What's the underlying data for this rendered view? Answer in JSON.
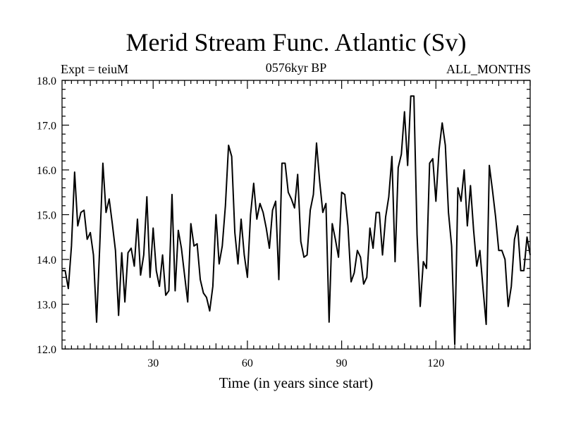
{
  "chart_data": {
    "type": "line",
    "title": "Merid Stream Func. Atlantic (Sv)",
    "left_label": "Expt = teiuM",
    "center_label": "0576kyr BP",
    "right_label": "ALL_MONTHS",
    "xlabel": "Time (in years since start)",
    "ylabel": "",
    "xlim": [
      1,
      150
    ],
    "ylim": [
      12.0,
      18.0
    ],
    "xticks": [
      30,
      60,
      90,
      120
    ],
    "xtick_labels": [
      "30",
      "60",
      "90",
      "120"
    ],
    "yticks": [
      12.0,
      13.0,
      14.0,
      15.0,
      16.0,
      17.0,
      18.0
    ],
    "ytick_labels": [
      "12.0",
      "13.0",
      "14.0",
      "15.0",
      "16.0",
      "17.0",
      "18.0"
    ],
    "series": [
      {
        "name": "Merid Stream Func. Atlantic",
        "x": [
          1,
          2,
          3,
          4,
          5,
          6,
          7,
          8,
          9,
          10,
          11,
          12,
          13,
          14,
          15,
          16,
          17,
          18,
          19,
          20,
          21,
          22,
          23,
          24,
          25,
          26,
          27,
          28,
          29,
          30,
          31,
          32,
          33,
          34,
          35,
          36,
          37,
          38,
          39,
          40,
          41,
          42,
          43,
          44,
          45,
          46,
          47,
          48,
          49,
          50,
          51,
          52,
          53,
          54,
          55,
          56,
          57,
          58,
          59,
          60,
          61,
          62,
          63,
          64,
          65,
          66,
          67,
          68,
          69,
          70,
          71,
          72,
          73,
          74,
          75,
          76,
          77,
          78,
          79,
          80,
          81,
          82,
          83,
          84,
          85,
          86,
          87,
          88,
          89,
          90,
          91,
          92,
          93,
          94,
          95,
          96,
          97,
          98,
          99,
          100,
          101,
          102,
          103,
          104,
          105,
          106,
          107,
          108,
          109,
          110,
          111,
          112,
          113,
          114,
          115,
          116,
          117,
          118,
          119,
          120,
          121,
          122,
          123,
          124,
          125,
          126,
          127,
          128,
          129,
          130,
          131,
          132,
          133,
          134,
          135,
          136,
          137,
          138,
          139,
          140,
          141,
          142,
          143,
          144,
          145,
          146,
          147,
          148,
          149,
          150
        ],
        "values": [
          13.75,
          13.75,
          13.35,
          14.3,
          15.95,
          14.75,
          15.05,
          15.1,
          14.45,
          14.6,
          14.1,
          12.6,
          14.3,
          16.15,
          15.05,
          15.35,
          14.8,
          14.2,
          12.75,
          14.15,
          13.05,
          14.15,
          14.25,
          13.85,
          14.9,
          13.65,
          14.1,
          15.4,
          13.6,
          14.7,
          13.75,
          13.4,
          14.1,
          13.2,
          13.3,
          15.45,
          13.3,
          14.65,
          14.25,
          13.65,
          13.05,
          14.8,
          14.3,
          14.35,
          13.55,
          13.25,
          13.15,
          12.85,
          13.4,
          15.0,
          13.9,
          14.3,
          15.2,
          16.55,
          16.3,
          14.6,
          13.9,
          14.9,
          14.1,
          13.6,
          15.0,
          15.7,
          14.9,
          15.25,
          15.05,
          14.7,
          14.25,
          15.1,
          15.3,
          13.55,
          16.15,
          16.15,
          15.5,
          15.35,
          15.15,
          15.9,
          14.4,
          14.05,
          14.1,
          15.1,
          15.45,
          16.6,
          15.75,
          15.05,
          15.25,
          12.6,
          14.8,
          14.45,
          14.05,
          15.5,
          15.45,
          14.75,
          13.5,
          13.7,
          14.2,
          14.05,
          13.45,
          13.6,
          14.7,
          14.25,
          15.05,
          15.05,
          14.1,
          14.95,
          15.4,
          16.3,
          13.95,
          16.05,
          16.35,
          17.3,
          16.1,
          17.65,
          17.65,
          14.55,
          12.95,
          13.95,
          13.8,
          16.15,
          16.25,
          15.3,
          16.45,
          17.05,
          16.55,
          15.05,
          14.3,
          12.1,
          15.6,
          15.3,
          16.0,
          14.75,
          15.65,
          14.65,
          13.85,
          14.2,
          13.35,
          12.55,
          16.1,
          15.55,
          14.95,
          14.2,
          14.2,
          14.0,
          12.95,
          13.4,
          14.45,
          14.75,
          13.75,
          13.75,
          14.5,
          14.1
        ]
      }
    ],
    "line_color": "#000000",
    "background": "#ffffff"
  }
}
